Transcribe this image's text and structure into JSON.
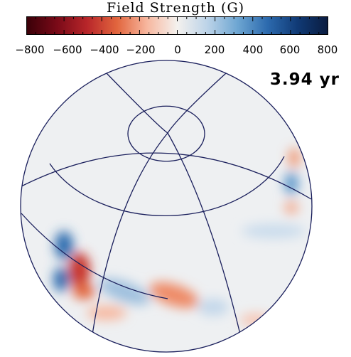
{
  "colorbar": {
    "title": "Field Strength (G)",
    "tick_labels": [
      "−800",
      "−600",
      "−400",
      "−200",
      "0",
      "200",
      "400",
      "600",
      "800"
    ],
    "range": [
      -800,
      800
    ],
    "colormap": [
      "#3a0008",
      "#b8262a",
      "#f7b79f",
      "#f4f1ee",
      "#6ea6d2",
      "#103a75",
      "#0a1c40"
    ]
  },
  "time_label": "3.94 yr",
  "globe": {
    "background_color": "#eeeff1",
    "grid_color": "#1a1f5c"
  }
}
